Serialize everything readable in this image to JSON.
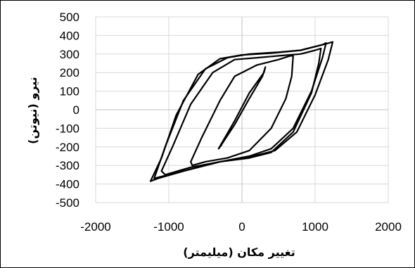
{
  "chart_data": {
    "type": "line",
    "title": "",
    "xlabel": "تغییر مکان (میلیمتر)",
    "ylabel": "نیرو (نیوتن)",
    "xlim": [
      -2000,
      2000
    ],
    "ylim": [
      -500,
      500
    ],
    "x_ticks": [
      "-2000",
      "-1000",
      "0",
      "1000",
      "2000"
    ],
    "y_ticks": [
      "500",
      "400",
      "300",
      "200",
      "100",
      "0",
      "-100",
      "-200",
      "-300",
      "-400",
      "-500"
    ],
    "grid": true,
    "legend": "none",
    "line_color": "#000000",
    "grid_color": "#d9d9d9",
    "series": [
      {
        "x": [
          -300,
          -100,
          100,
          280,
          320,
          300,
          100,
          -100,
          -320,
          -280,
          -300
        ],
        "y": [
          -200,
          -80,
          60,
          180,
          230,
          200,
          90,
          -60,
          -210,
          -190,
          -200
        ]
      },
      {
        "x": [
          -700,
          -550,
          -300,
          -100,
          200,
          500,
          660,
          700,
          680,
          600,
          400,
          100,
          -200,
          -500,
          -680,
          -700
        ],
        "y": [
          -280,
          -150,
          50,
          180,
          240,
          270,
          290,
          290,
          180,
          60,
          -100,
          -220,
          -260,
          -280,
          -300,
          -280
        ]
      },
      {
        "x": [
          -1100,
          -950,
          -700,
          -400,
          -100,
          200,
          500,
          800,
          1000,
          1080,
          1050,
          950,
          700,
          400,
          100,
          -300,
          -700,
          -1050,
          -1100
        ],
        "y": [
          -330,
          -200,
          30,
          200,
          270,
          280,
          290,
          300,
          320,
          330,
          250,
          90,
          -120,
          -230,
          -260,
          -280,
          -310,
          -350,
          -330
        ]
      },
      {
        "x": [
          -1200,
          -1050,
          -800,
          -500,
          -200,
          100,
          500,
          800,
          1100,
          1150,
          1100,
          950,
          700,
          400,
          100,
          -300,
          -700,
          -1100,
          -1200
        ],
        "y": [
          -370,
          -200,
          50,
          220,
          280,
          300,
          310,
          320,
          350,
          360,
          280,
          100,
          -100,
          -210,
          -250,
          -280,
          -320,
          -360,
          -370
        ]
      },
      {
        "x": [
          -1250,
          -1100,
          -900,
          -600,
          -300,
          0,
          400,
          800,
          1150,
          1240,
          1180,
          1000,
          750,
          450,
          100,
          -300,
          -750,
          -1150,
          -1250
        ],
        "y": [
          -385,
          -260,
          -30,
          190,
          275,
          295,
          305,
          320,
          355,
          365,
          270,
          80,
          -120,
          -220,
          -255,
          -280,
          -325,
          -370,
          -385
        ]
      }
    ]
  }
}
